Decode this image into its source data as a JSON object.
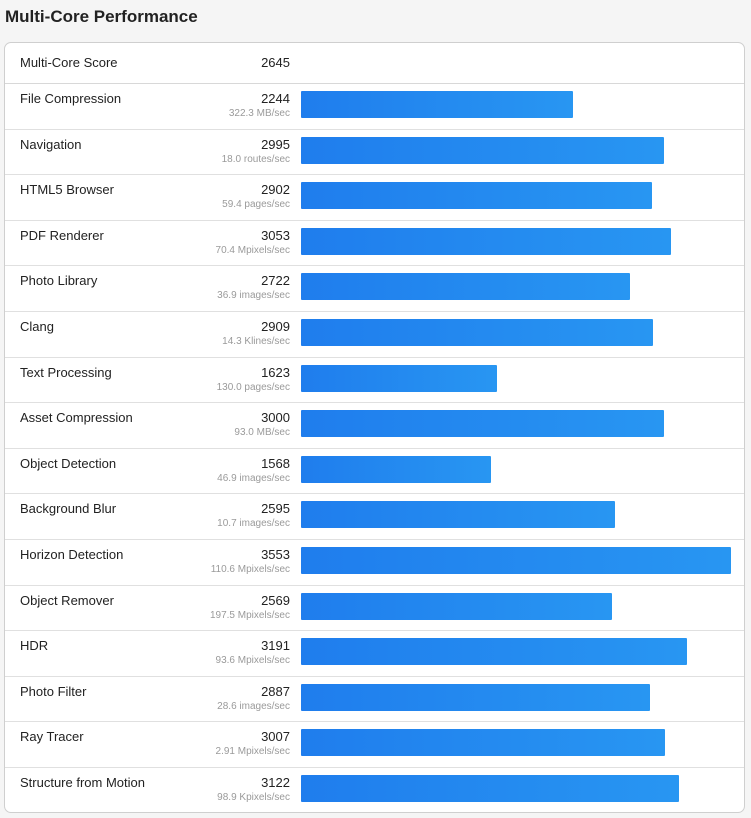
{
  "page": {
    "title": "Multi-Core Performance"
  },
  "summary": {
    "label": "Multi-Core Score",
    "value": "2645"
  },
  "colors": {
    "bar": "#1f7ded",
    "bar_end": "#2896f2",
    "rate_text": "#9a9a9a"
  },
  "chart_data": {
    "type": "bar",
    "orientation": "horizontal",
    "title": "Multi-Core Performance",
    "xlim": [
      0,
      3553
    ],
    "categories": [
      "File Compression",
      "Navigation",
      "HTML5 Browser",
      "PDF Renderer",
      "Photo Library",
      "Clang",
      "Text Processing",
      "Asset Compression",
      "Object Detection",
      "Background Blur",
      "Horizon Detection",
      "Object Remover",
      "HDR",
      "Photo Filter",
      "Ray Tracer",
      "Structure from Motion"
    ],
    "values": [
      2244,
      2995,
      2902,
      3053,
      2722,
      2909,
      1623,
      3000,
      1568,
      2595,
      3553,
      2569,
      3191,
      2887,
      3007,
      3122
    ],
    "rates": [
      "322.3 MB/sec",
      "18.0 routes/sec",
      "59.4 pages/sec",
      "70.4 Mpixels/sec",
      "36.9 images/sec",
      "14.3 Klines/sec",
      "130.0 pages/sec",
      "93.0 MB/sec",
      "46.9 images/sec",
      "10.7 images/sec",
      "110.6 Mpixels/sec",
      "197.5 Mpixels/sec",
      "93.6 Mpixels/sec",
      "28.6 images/sec",
      "2.91 Mpixels/sec",
      "98.9 Kpixels/sec"
    ]
  }
}
